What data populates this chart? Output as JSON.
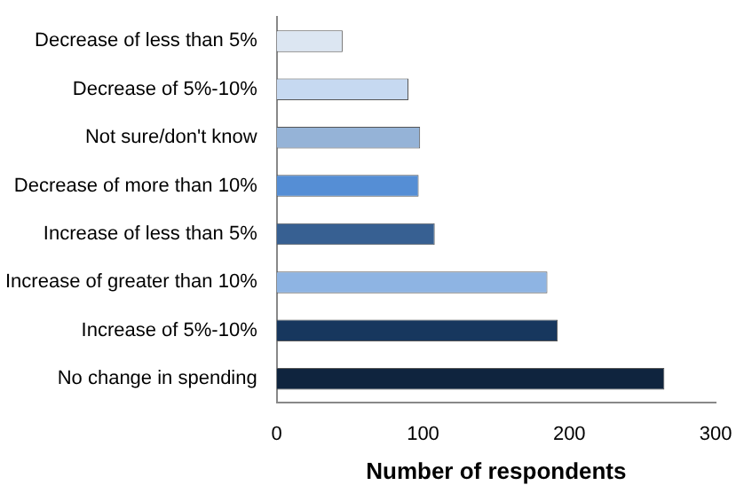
{
  "chart_data": {
    "type": "bar",
    "orientation": "horizontal",
    "xlabel": "Number of respondents",
    "categories": [
      "Decrease of less than 5%",
      "Decrease of 5%-10%",
      "Not sure/don't know",
      "Decrease of more than 10%",
      "Increase of less than 5%",
      "Increase of greater than 10%",
      "Increase of 5%-10%",
      "No change in spending"
    ],
    "values": [
      45,
      90,
      98,
      97,
      108,
      185,
      192,
      265
    ],
    "colors": [
      "#dce6f2",
      "#c6d9f1",
      "#95b3d7",
      "#558ed5",
      "#376092",
      "#8eb4e3",
      "#17375e",
      "#0f243e"
    ],
    "xlim": [
      0,
      300
    ],
    "xticks": [
      0,
      100,
      200,
      300
    ],
    "grid": false,
    "legend": false
  }
}
